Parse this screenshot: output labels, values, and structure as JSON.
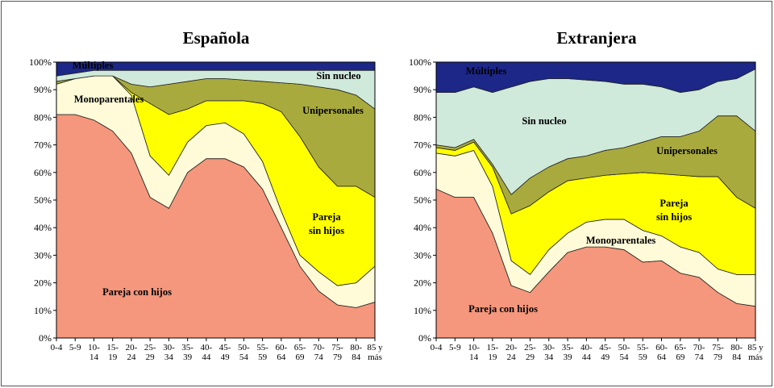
{
  "chart_data": [
    {
      "type": "stacked-area",
      "title": "Española",
      "categories": [
        [
          "0-4"
        ],
        [
          "5-9"
        ],
        [
          "10-",
          "14"
        ],
        [
          "15-",
          "19"
        ],
        [
          "20-",
          "24"
        ],
        [
          "25-",
          "29"
        ],
        [
          "30-",
          "34"
        ],
        [
          "35-",
          "39"
        ],
        [
          "40-",
          "44"
        ],
        [
          "45-",
          "49"
        ],
        [
          "50-",
          "54"
        ],
        [
          "55-",
          "59"
        ],
        [
          "60-",
          "64"
        ],
        [
          "65-",
          "69"
        ],
        [
          "70-",
          "74"
        ],
        [
          "75-",
          "79"
        ],
        [
          "80-",
          "84"
        ],
        [
          "85 y",
          "más"
        ]
      ],
      "ylim": [
        0,
        100
      ],
      "yticks": [
        {
          "value": 0,
          "label": "0%"
        },
        {
          "value": 10,
          "label": "10%"
        },
        {
          "value": 20,
          "label": "20%"
        },
        {
          "value": 30,
          "label": "30%"
        },
        {
          "value": 40,
          "label": "40%"
        },
        {
          "value": 50,
          "label": "50%"
        },
        {
          "value": 60,
          "label": "60%"
        },
        {
          "value": 70,
          "label": "70%"
        },
        {
          "value": 80,
          "label": "80%"
        },
        {
          "value": 90,
          "label": "90%"
        },
        {
          "value": 100,
          "label": "100%"
        }
      ],
      "series": [
        {
          "name": "Pareja con hijos",
          "color": "#f4977c",
          "values": [
            81,
            81,
            79,
            75,
            67,
            51,
            47,
            60,
            65,
            65,
            62,
            54,
            40,
            26,
            17,
            12,
            11,
            13
          ]
        },
        {
          "name": "Monoparentales",
          "color": "#fffbd8",
          "values": [
            11,
            13,
            16,
            20,
            21,
            15,
            12,
            11,
            12,
            13,
            12,
            10,
            6,
            4,
            7,
            7,
            9,
            13
          ]
        },
        {
          "name": "Pareja sin hijos",
          "color": "#ffff00",
          "values": [
            0,
            0,
            0,
            0,
            1,
            19,
            22,
            12,
            9,
            8,
            12,
            21,
            36,
            43,
            38,
            36,
            35,
            25
          ]
        },
        {
          "name": "Unipersonales",
          "color": "#a9aa3e",
          "values": [
            1,
            0,
            0,
            0,
            3,
            6,
            11,
            10,
            8,
            8,
            7.5,
            8,
            10.5,
            19,
            29,
            35,
            33,
            32
          ]
        },
        {
          "name": "Sin nucleo",
          "color": "#cfe9da",
          "values": [
            2,
            2,
            2,
            2,
            5,
            6,
            5,
            4,
            3,
            3,
            3.5,
            4,
            4.5,
            5,
            6,
            7,
            9,
            14
          ]
        },
        {
          "name": "Múltiples",
          "color": "#1c2787",
          "values": [
            5,
            4,
            3,
            3,
            3,
            3,
            3,
            3,
            3,
            3,
            3,
            3,
            3,
            3,
            3,
            3,
            3,
            3
          ]
        }
      ]
    },
    {
      "type": "stacked-area",
      "title": "Extranjera",
      "categories": [
        [
          "0-4"
        ],
        [
          "5-9"
        ],
        [
          "10-",
          "14"
        ],
        [
          "15-",
          "19"
        ],
        [
          "20-",
          "24"
        ],
        [
          "25-",
          "29"
        ],
        [
          "30-",
          "34"
        ],
        [
          "35-",
          "39"
        ],
        [
          "40-",
          "44"
        ],
        [
          "45-",
          "49"
        ],
        [
          "50-",
          "54"
        ],
        [
          "55-",
          "59"
        ],
        [
          "60-",
          "64"
        ],
        [
          "65-",
          "69"
        ],
        [
          "70-",
          "74"
        ],
        [
          "75-",
          "79"
        ],
        [
          "80-",
          "84"
        ],
        [
          "85 y",
          "más"
        ]
      ],
      "ylim": [
        0,
        100
      ],
      "yticks": [
        {
          "value": 0,
          "label": "0%"
        },
        {
          "value": 10,
          "label": "10%"
        },
        {
          "value": 20,
          "label": "20%"
        },
        {
          "value": 30,
          "label": "30%"
        },
        {
          "value": 40,
          "label": "40%"
        },
        {
          "value": 50,
          "label": "50%"
        },
        {
          "value": 60,
          "label": "60%"
        },
        {
          "value": 70,
          "label": "70%"
        },
        {
          "value": 80,
          "label": "80%"
        },
        {
          "value": 90,
          "label": "90%"
        },
        {
          "value": 100,
          "label": "100%"
        }
      ],
      "series": [
        {
          "name": "Pareja con hijos",
          "color": "#f4977c",
          "values": [
            54,
            51,
            51,
            38,
            19,
            16.5,
            24,
            31,
            33,
            33,
            32,
            27.5,
            28,
            23.5,
            22,
            16.5,
            12.5,
            11.5
          ]
        },
        {
          "name": "Monoparentales",
          "color": "#fffbd8",
          "values": [
            13,
            15,
            17,
            17,
            9,
            6.5,
            8,
            7,
            9,
            10,
            11,
            11.5,
            9,
            9.5,
            9,
            8.5,
            10.5,
            11.5
          ]
        },
        {
          "name": "Pareja sin hijos",
          "color": "#ffff00",
          "values": [
            2,
            2,
            3,
            7,
            17,
            25,
            21,
            19,
            16,
            16,
            16.5,
            21,
            22.5,
            26,
            27.5,
            33.5,
            28,
            24
          ]
        },
        {
          "name": "Unipersonales",
          "color": "#a9aa3e",
          "values": [
            1,
            1,
            1,
            1,
            7,
            10,
            9,
            8,
            8,
            9,
            9.5,
            11,
            13.5,
            14,
            16.5,
            22,
            29.5,
            28
          ]
        },
        {
          "name": "Sin nucleo",
          "color": "#cfe9da",
          "values": [
            19,
            20,
            19,
            26,
            39,
            35,
            32,
            29,
            27.5,
            25,
            23,
            21,
            18,
            16,
            15,
            12.5,
            13.5,
            22.5
          ]
        },
        {
          "name": "Múltiples",
          "color": "#1c2787",
          "values": [
            11,
            11,
            9,
            11,
            9,
            7,
            6,
            6,
            6.5,
            7,
            8,
            8,
            9,
            11,
            10,
            7,
            6,
            2.5
          ]
        }
      ]
    }
  ]
}
